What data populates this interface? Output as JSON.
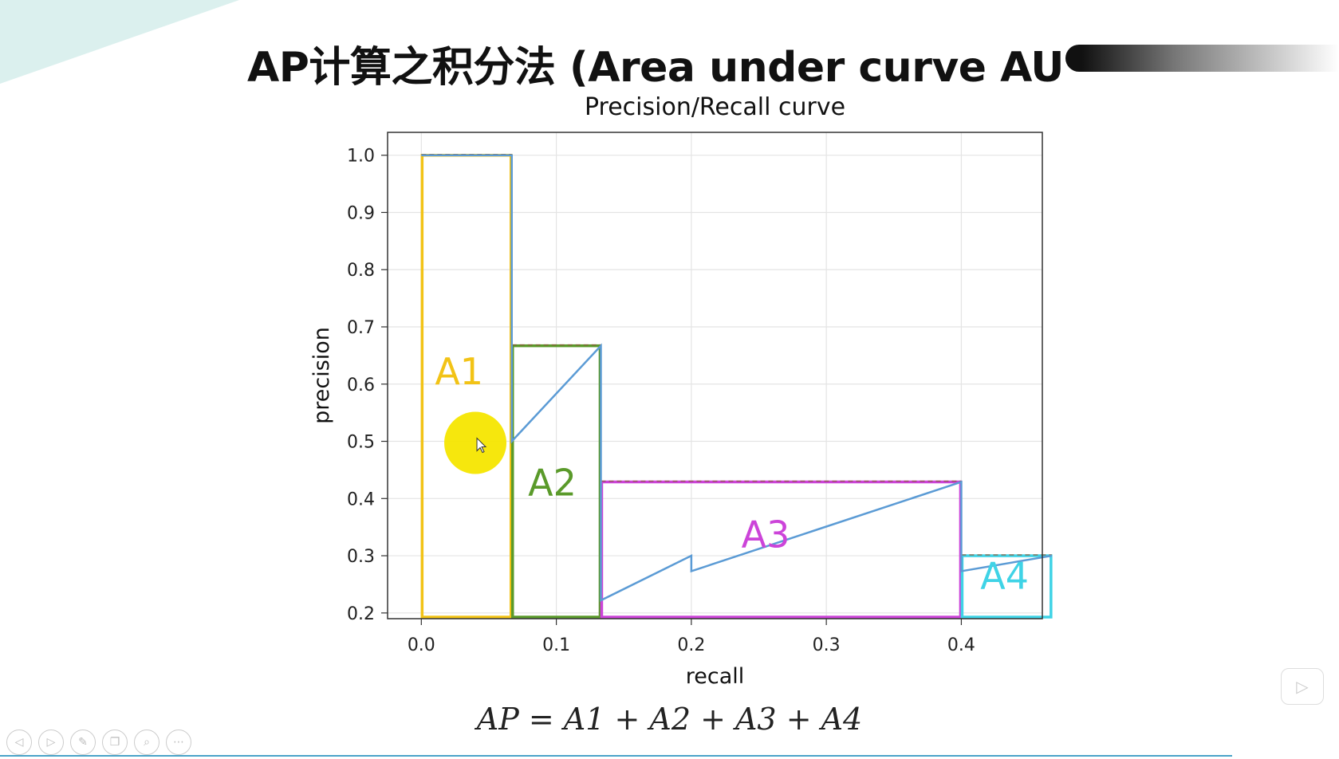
{
  "slide": {
    "title": "AP计算之积分法 (Area under curve AU",
    "formula": "AP = A1 + A2 + A3 + A4"
  },
  "chart_data": {
    "type": "line",
    "title": "Precision/Recall curve",
    "xlabel": "recall",
    "ylabel": "precision",
    "xlim": [
      -0.025,
      0.46
    ],
    "ylim": [
      0.19,
      1.04
    ],
    "xticks": [
      "0.0",
      "0.1",
      "0.2",
      "0.3",
      "0.4"
    ],
    "yticks": [
      "0.2",
      "0.3",
      "0.4",
      "0.5",
      "0.6",
      "0.7",
      "0.8",
      "0.9",
      "1.0"
    ],
    "grid": true,
    "series": [
      {
        "color": "#5b9bd5",
        "x": [
          0.0,
          0.067,
          0.067,
          0.133,
          0.133,
          0.2,
          0.2,
          0.4,
          0.4,
          0.467
        ],
        "y": [
          1.0,
          1.0,
          0.5,
          0.667,
          0.222,
          0.3,
          0.273,
          0.429,
          0.273,
          0.3
        ]
      }
    ],
    "areas": [
      {
        "label": "A1",
        "x0": 0.0,
        "x1": 0.067,
        "height": 1.0,
        "color": "#f2c316"
      },
      {
        "label": "A2",
        "x0": 0.067,
        "x1": 0.133,
        "height": 0.667,
        "color": "#5a9a2a"
      },
      {
        "label": "A3",
        "x0": 0.133,
        "x1": 0.4,
        "height": 0.429,
        "color": "#cc44d9"
      },
      {
        "label": "A4",
        "x0": 0.4,
        "x1": 0.467,
        "height": 0.3,
        "color": "#3fd3e6"
      }
    ],
    "cursor": {
      "recall": 0.04,
      "precision": 0.5
    }
  },
  "toolbar": {
    "icons": [
      "prev-icon",
      "next-icon",
      "pen-icon",
      "copy-icon",
      "zoom-icon",
      "more-icon"
    ]
  },
  "colors": {
    "accent_line": "#4aa3c8",
    "teal_wedge": "#dbf0ee"
  }
}
